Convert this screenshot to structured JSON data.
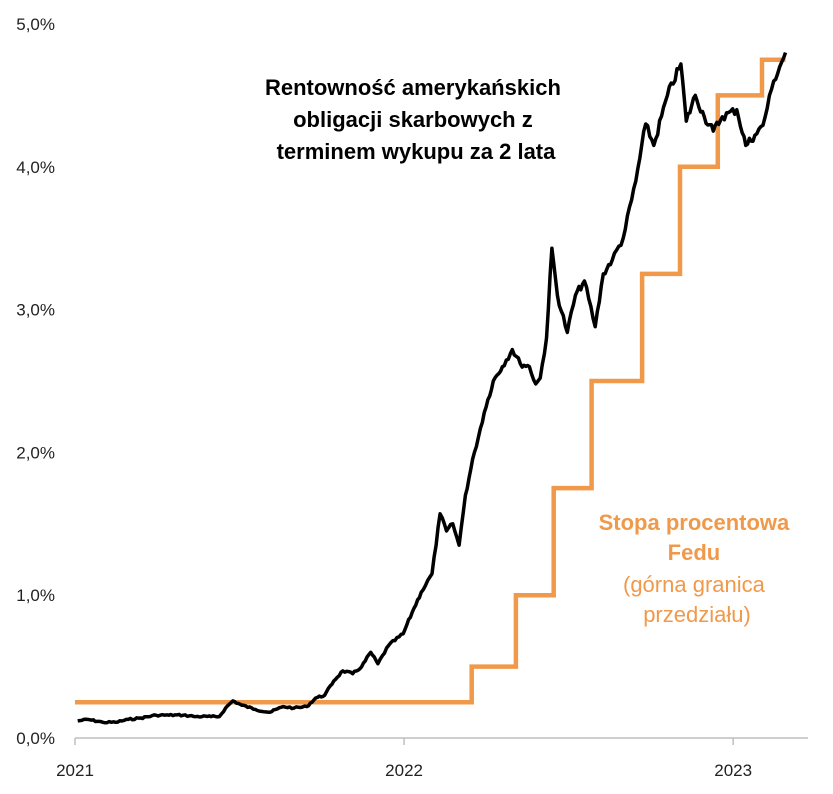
{
  "chart_data": {
    "type": "line",
    "x_axis": {
      "type": "date",
      "range": [
        "2021-01-01",
        "2023-03-25"
      ],
      "tick_labels": [
        "2021",
        "2022",
        "2023"
      ],
      "tick_dates": [
        "2021-01-01",
        "2022-01-01",
        "2023-01-01"
      ]
    },
    "y_axis": {
      "range": [
        0,
        5.0
      ],
      "unit": "%",
      "tick_labels": [
        "0,0%",
        "1,0%",
        "2,0%",
        "3,0%",
        "4,0%",
        "5,0%"
      ],
      "tick_values": [
        0,
        1,
        2,
        3,
        4,
        5
      ]
    },
    "grid": false,
    "series": [
      {
        "name": "Rentowność amerykańskich obligacji skarbowych z terminem wykupu za 2 lata",
        "color": "#000000",
        "points": [
          [
            "2021-01-04",
            0.12
          ],
          [
            "2021-01-15",
            0.13
          ],
          [
            "2021-02-01",
            0.11
          ],
          [
            "2021-02-15",
            0.11
          ],
          [
            "2021-03-01",
            0.13
          ],
          [
            "2021-03-15",
            0.14
          ],
          [
            "2021-04-01",
            0.16
          ],
          [
            "2021-04-15",
            0.16
          ],
          [
            "2021-05-01",
            0.16
          ],
          [
            "2021-05-15",
            0.15
          ],
          [
            "2021-06-01",
            0.15
          ],
          [
            "2021-06-10",
            0.15
          ],
          [
            "2021-06-17",
            0.21
          ],
          [
            "2021-06-25",
            0.26
          ],
          [
            "2021-07-05",
            0.23
          ],
          [
            "2021-07-20",
            0.2
          ],
          [
            "2021-08-05",
            0.18
          ],
          [
            "2021-08-20",
            0.22
          ],
          [
            "2021-09-01",
            0.21
          ],
          [
            "2021-09-15",
            0.22
          ],
          [
            "2021-09-25",
            0.28
          ],
          [
            "2021-10-05",
            0.3
          ],
          [
            "2021-10-15",
            0.4
          ],
          [
            "2021-10-25",
            0.47
          ],
          [
            "2021-11-05",
            0.45
          ],
          [
            "2021-11-15",
            0.5
          ],
          [
            "2021-11-25",
            0.6
          ],
          [
            "2021-12-03",
            0.52
          ],
          [
            "2021-12-15",
            0.65
          ],
          [
            "2021-12-31",
            0.73
          ],
          [
            "2022-01-10",
            0.88
          ],
          [
            "2022-01-20",
            1.02
          ],
          [
            "2022-02-01",
            1.15
          ],
          [
            "2022-02-10",
            1.57
          ],
          [
            "2022-02-17",
            1.45
          ],
          [
            "2022-02-24",
            1.5
          ],
          [
            "2022-03-03",
            1.35
          ],
          [
            "2022-03-10",
            1.7
          ],
          [
            "2022-03-20",
            2.0
          ],
          [
            "2022-03-31",
            2.28
          ],
          [
            "2022-04-10",
            2.5
          ],
          [
            "2022-04-20",
            2.6
          ],
          [
            "2022-05-01",
            2.72
          ],
          [
            "2022-05-10",
            2.62
          ],
          [
            "2022-05-20",
            2.6
          ],
          [
            "2022-05-27",
            2.48
          ],
          [
            "2022-06-01",
            2.52
          ],
          [
            "2022-06-08",
            2.8
          ],
          [
            "2022-06-14",
            3.43
          ],
          [
            "2022-06-20",
            3.1
          ],
          [
            "2022-07-01",
            2.84
          ],
          [
            "2022-07-10",
            3.1
          ],
          [
            "2022-07-20",
            3.2
          ],
          [
            "2022-08-01",
            2.88
          ],
          [
            "2022-08-10",
            3.25
          ],
          [
            "2022-08-20",
            3.35
          ],
          [
            "2022-09-01",
            3.5
          ],
          [
            "2022-09-15",
            3.9
          ],
          [
            "2022-09-26",
            4.3
          ],
          [
            "2022-10-05",
            4.15
          ],
          [
            "2022-10-20",
            4.5
          ],
          [
            "2022-11-04",
            4.72
          ],
          [
            "2022-11-10",
            4.32
          ],
          [
            "2022-11-20",
            4.5
          ],
          [
            "2022-11-30",
            4.35
          ],
          [
            "2022-12-10",
            4.25
          ],
          [
            "2022-12-20",
            4.35
          ],
          [
            "2023-01-05",
            4.4
          ],
          [
            "2023-01-15",
            4.15
          ],
          [
            "2023-01-25",
            4.22
          ],
          [
            "2023-02-03",
            4.29
          ],
          [
            "2023-02-15",
            4.6
          ],
          [
            "2023-02-28",
            4.8
          ]
        ]
      },
      {
        "name": "Stopa procentowa Fedu",
        "color": "#F0994A",
        "step": true,
        "points": [
          [
            "2021-01-01",
            0.25
          ],
          [
            "2022-03-17",
            0.5
          ],
          [
            "2022-05-05",
            1.0
          ],
          [
            "2022-06-16",
            1.75
          ],
          [
            "2022-07-28",
            2.5
          ],
          [
            "2022-09-22",
            3.25
          ],
          [
            "2022-11-03",
            4.0
          ],
          [
            "2022-12-15",
            4.5
          ],
          [
            "2023-02-02",
            4.75
          ],
          [
            "2023-02-28",
            4.75
          ]
        ]
      }
    ],
    "annotations": {
      "yield_label": [
        "Rentowność amerykańskich",
        "obligacji skarbowych z",
        "terminem wykupu za 2 lata"
      ],
      "fed_label_title": [
        "Stopa procentowa",
        "Fedu"
      ],
      "fed_label_sub": [
        "(górna granica",
        "przedziału)"
      ]
    }
  }
}
